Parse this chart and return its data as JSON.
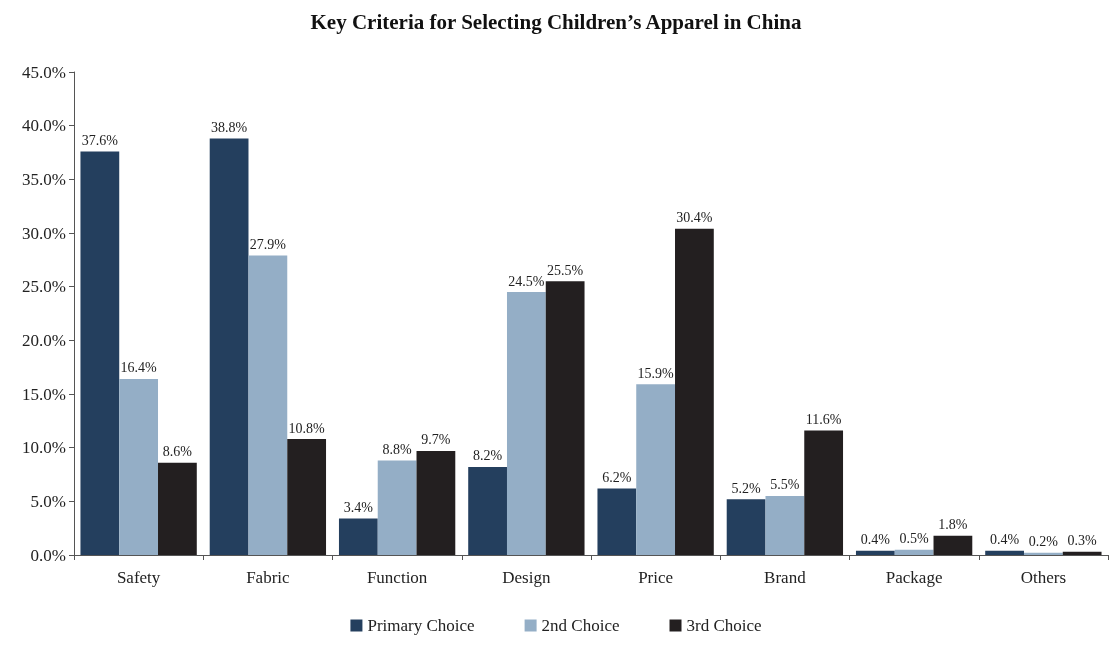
{
  "chart_data": {
    "type": "bar",
    "title": "Key Criteria for Selecting Children’s Apparel in China",
    "categories": [
      "Safety",
      "Fabric",
      "Function",
      "Design",
      "Price",
      "Brand",
      "Package",
      "Others"
    ],
    "series": [
      {
        "name": "Primary Choice",
        "color": "#243f5e",
        "values": [
          37.6,
          38.8,
          3.4,
          8.2,
          6.2,
          5.2,
          0.4,
          0.4
        ],
        "value_labels": [
          "37.6%",
          "38.8%",
          "3.4%",
          "8.2%",
          "6.2%",
          "5.2%",
          "0.4%",
          "0.4%"
        ]
      },
      {
        "name": "2nd Choice",
        "color": "#94aec6",
        "values": [
          16.4,
          27.9,
          8.8,
          24.5,
          15.9,
          5.5,
          0.5,
          0.2
        ],
        "value_labels": [
          "16.4%",
          "27.9%",
          "8.8%",
          "24.5%",
          "15.9%",
          "5.5%",
          "0.5%",
          "0.2%"
        ]
      },
      {
        "name": "3rd Choice",
        "color": "#231f20",
        "values": [
          8.6,
          10.8,
          9.7,
          25.5,
          30.4,
          11.6,
          1.8,
          0.3
        ],
        "value_labels": [
          "8.6%",
          "10.8%",
          "9.7%",
          "25.5%",
          "30.4%",
          "11.6%",
          "1.8%",
          "0.3%"
        ]
      }
    ],
    "ylim": [
      0,
      45
    ],
    "yticks": [
      {
        "value": 0,
        "label": "0.0%"
      },
      {
        "value": 5,
        "label": "5.0%"
      },
      {
        "value": 10,
        "label": "10.0%"
      },
      {
        "value": 15,
        "label": "15.0%"
      },
      {
        "value": 20,
        "label": "20.0%"
      },
      {
        "value": 25,
        "label": "25.0%"
      },
      {
        "value": 30,
        "label": "30.0%"
      },
      {
        "value": 35,
        "label": "35.0%"
      },
      {
        "value": 40,
        "label": "40.0%"
      },
      {
        "value": 45,
        "label": "45.0%"
      }
    ],
    "grid": false,
    "legend": "bottom"
  }
}
